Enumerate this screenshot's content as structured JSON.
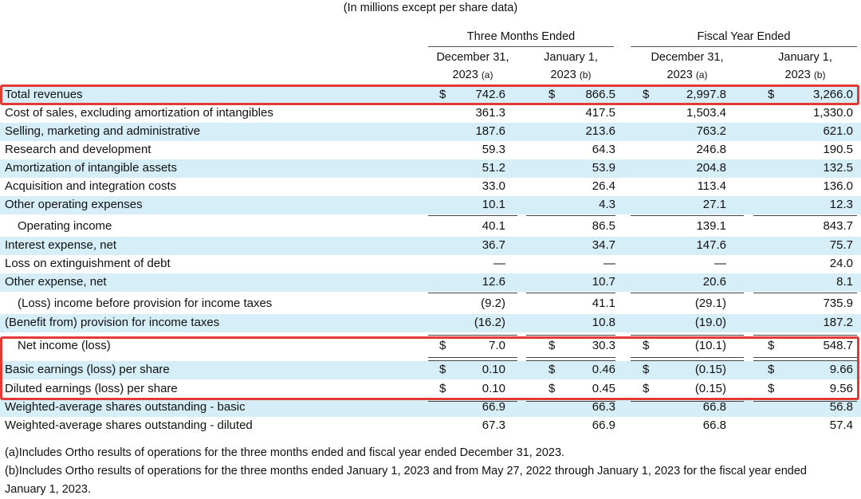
{
  "subtitle": "(In millions except per share data)",
  "groups": {
    "three_months": "Three Months Ended",
    "fiscal_year": "Fiscal Year Ended"
  },
  "columns": [
    {
      "line1": "December 31,",
      "line2": "2023",
      "note": "(a)"
    },
    {
      "line1": "January 1,",
      "line2": "2023",
      "note": "(b)"
    },
    {
      "line1": "December 31,",
      "line2": "2023",
      "note": "(a)"
    },
    {
      "line1": "January 1,",
      "line2": "2023",
      "note": "(b)"
    }
  ],
  "currency_symbol": "$",
  "rows": [
    {
      "label": "Total revenues",
      "values": [
        "742.6",
        "866.5",
        "2,997.8",
        "3,266.0"
      ]
    },
    {
      "label": "Cost of sales, excluding amortization of intangibles",
      "values": [
        "361.3",
        "417.5",
        "1,503.4",
        "1,330.0"
      ]
    },
    {
      "label": "Selling, marketing and administrative",
      "values": [
        "187.6",
        "213.6",
        "763.2",
        "621.0"
      ]
    },
    {
      "label": "Research and development",
      "values": [
        "59.3",
        "64.3",
        "246.8",
        "190.5"
      ]
    },
    {
      "label": "Amortization of intangible assets",
      "values": [
        "51.2",
        "53.9",
        "204.8",
        "132.5"
      ]
    },
    {
      "label": "Acquisition and integration costs",
      "values": [
        "33.0",
        "26.4",
        "113.4",
        "136.0"
      ]
    },
    {
      "label": "Other operating expenses",
      "values": [
        "10.1",
        "4.3",
        "27.1",
        "12.3"
      ]
    },
    {
      "label": "Operating income",
      "values": [
        "40.1",
        "86.5",
        "139.1",
        "843.7"
      ]
    },
    {
      "label": "Interest expense, net",
      "values": [
        "36.7",
        "34.7",
        "147.6",
        "75.7"
      ]
    },
    {
      "label": "Loss on extinguishment of debt",
      "values": [
        "—",
        "—",
        "—",
        "24.0"
      ]
    },
    {
      "label": "Other expense, net",
      "values": [
        "12.6",
        "10.7",
        "20.6",
        "8.1"
      ]
    },
    {
      "label": "(Loss) income before provision for income taxes",
      "values": [
        "(9.2)",
        "41.1",
        "(29.1)",
        "735.9"
      ]
    },
    {
      "label": "(Benefit from) provision for income taxes",
      "values": [
        "(16.2)",
        "10.8",
        "(19.0)",
        "187.2"
      ]
    },
    {
      "label": "Net income (loss)",
      "values": [
        "7.0",
        "30.3",
        "(10.1)",
        "548.7"
      ]
    },
    {
      "label": "Basic earnings (loss) per share",
      "values": [
        "0.10",
        "0.46",
        "(0.15)",
        "9.66"
      ]
    },
    {
      "label": "Diluted earnings (loss) per share",
      "values": [
        "0.10",
        "0.45",
        "(0.15)",
        "9.56"
      ]
    },
    {
      "label": "Weighted-average shares outstanding - basic",
      "values": [
        "66.9",
        "66.3",
        "66.8",
        "56.8"
      ]
    },
    {
      "label": "Weighted-average shares outstanding - diluted",
      "values": [
        "67.3",
        "66.9",
        "66.8",
        "57.4"
      ]
    }
  ],
  "footnotes": {
    "a_marker": "(a)",
    "a_text": "Includes Ortho results of operations for the three months ended and fiscal year ended December 31, 2023.",
    "b_marker": "(b)",
    "b_text": "Includes Ortho results of operations for the three months ended January 1, 2023 and from May 27, 2022 through January 1, 2023 for the fiscal year ended January 1, 2023."
  },
  "colors": {
    "row_shade": "#d6eef8",
    "highlight": "#e53935"
  }
}
